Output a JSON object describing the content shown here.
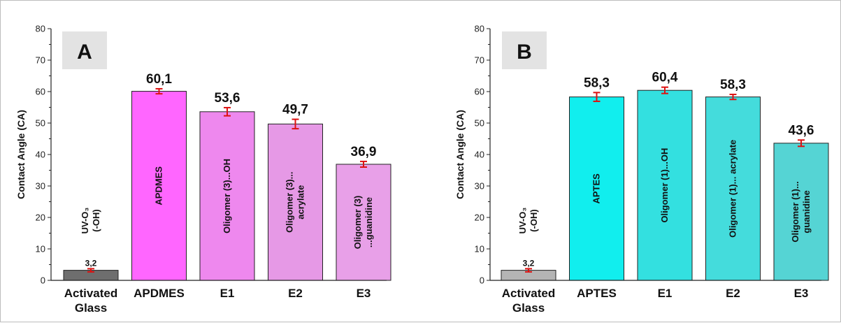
{
  "chart_data": [
    {
      "type": "bar",
      "panel_label": "A",
      "ylabel": "Contact Angle (CA)",
      "ylim": [
        0,
        80
      ],
      "yticks": [
        0,
        10,
        20,
        30,
        40,
        50,
        60,
        70,
        80
      ],
      "categories": [
        [
          "Activated",
          "Glass"
        ],
        [
          "APDMES"
        ],
        [
          "E1"
        ],
        [
          "E2"
        ],
        [
          "E3"
        ]
      ],
      "values": [
        3.2,
        60.1,
        53.6,
        49.7,
        36.9
      ],
      "errors": [
        0.5,
        0.8,
        1.3,
        1.5,
        0.9
      ],
      "value_labels": [
        "3,2",
        "60,1",
        "53,6",
        "49,7",
        "36,9"
      ],
      "bar_texts": [
        [
          "UV-O₃",
          "(-OH)"
        ],
        [
          "APDMES"
        ],
        [
          "Oligomer (3)...OH"
        ],
        [
          "Oligomer (3)...",
          "acrylate"
        ],
        [
          "Oligomer (3)",
          "...guanidine"
        ]
      ],
      "colors": [
        "#6e6e6e",
        "#ff66ff",
        "#ee88ee",
        "#e699e6",
        "#e8a0e8"
      ],
      "error_color": "#dd1111"
    },
    {
      "type": "bar",
      "panel_label": "B",
      "ylabel": "Contact Angle (CA)",
      "ylim": [
        0,
        80
      ],
      "yticks": [
        0,
        10,
        20,
        30,
        40,
        50,
        60,
        70,
        80
      ],
      "categories": [
        [
          "Activated",
          "Glass"
        ],
        [
          "APTES"
        ],
        [
          "E1"
        ],
        [
          "E2"
        ],
        [
          "E3"
        ]
      ],
      "values": [
        3.2,
        58.3,
        60.4,
        58.3,
        43.6
      ],
      "errors": [
        0.5,
        1.4,
        1.0,
        0.8,
        1.0
      ],
      "value_labels": [
        "3,2",
        "58,3",
        "60,4",
        "58,3",
        "43,6"
      ],
      "bar_texts": [
        [
          "UV-O₃",
          "(-OH)"
        ],
        [
          "APTES"
        ],
        [
          "Oligomer (1)...OH"
        ],
        [
          "Oligomer (1)... acrylate"
        ],
        [
          "Oligomer (1)...",
          "guanidine"
        ]
      ],
      "colors": [
        "#b4b4b4",
        "#11eeee",
        "#33e0e0",
        "#44dcdc",
        "#55d4d4"
      ],
      "error_color": "#dd1111"
    }
  ]
}
